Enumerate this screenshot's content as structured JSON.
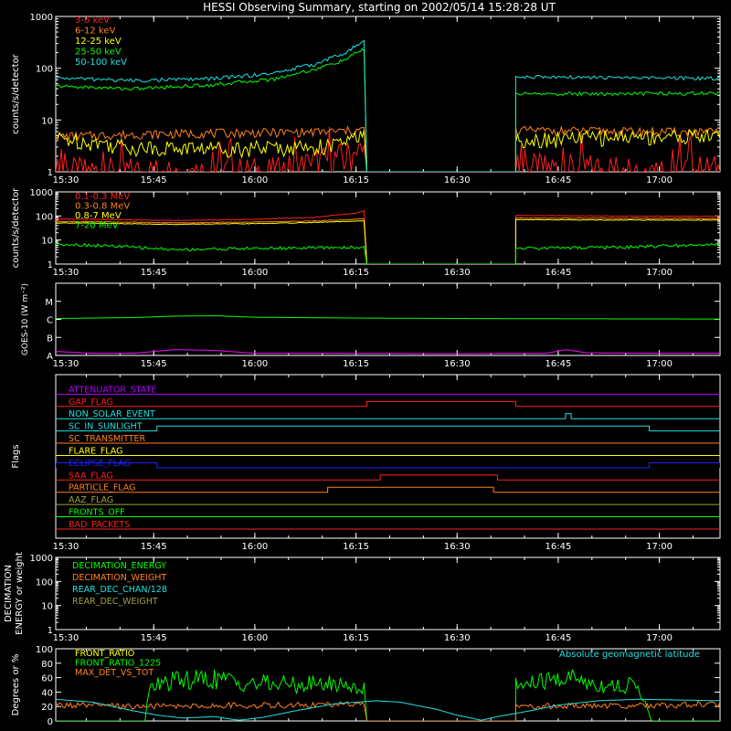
{
  "title": "HESSI Observing Summary, starting on 2002/05/14 15:28:28 UT",
  "colors": {
    "background": "#000000",
    "axes": "#ffffff",
    "red": "#ff2020",
    "orange": "#ff8020",
    "yellow": "#ffff00",
    "green": "#00ff00",
    "cyan": "#20e0e0",
    "magenta": "#ff00ff",
    "purple": "#b000ff",
    "blue": "#2020ff",
    "olive": "#a0a040"
  },
  "chart_data": [
    {
      "id": "p1",
      "type": "line",
      "ylabel": "counts/s/detector",
      "yscale": "log",
      "ylim": [
        1,
        1000
      ],
      "yticks": [
        1,
        10,
        100,
        1000
      ],
      "ytick_labels": [
        "1",
        "10",
        "100",
        "1000"
      ],
      "xlim": [
        15.5078,
        17.15
      ],
      "xticks": [
        15.5,
        15.75,
        16.0,
        16.25,
        16.5,
        16.75,
        17.0
      ],
      "xtick_labels": [
        "15:30",
        "15:45",
        "16:00",
        "16:15",
        "16:30",
        "16:45",
        "17:00"
      ],
      "gap": [
        16.277,
        16.645
      ],
      "series": [
        {
          "name": "3-6 keV",
          "color": "red",
          "before": [
            [
              15.5078,
              1
            ],
            [
              16.05,
              1
            ],
            [
              16.12,
              1.3
            ],
            [
              16.2,
              1.8
            ],
            [
              16.27,
              2.5
            ]
          ],
          "after": [
            [
              16.645,
              1.2
            ],
            [
              17.15,
              1.1
            ]
          ]
        },
        {
          "name": "6-12 keV",
          "color": "orange",
          "before": [
            [
              15.5078,
              4.8
            ],
            [
              15.7,
              5.3
            ],
            [
              15.9,
              5.6
            ],
            [
              16.1,
              5.8
            ],
            [
              16.2,
              6
            ],
            [
              16.27,
              6.5
            ]
          ],
          "after": [
            [
              16.645,
              6.3
            ],
            [
              16.9,
              6
            ],
            [
              17.15,
              5.8
            ]
          ]
        },
        {
          "name": "12-25 keV",
          "color": "yellow",
          "before": [
            [
              15.5078,
              4.5
            ],
            [
              15.7,
              3
            ],
            [
              15.9,
              2.9
            ],
            [
              16.1,
              3
            ],
            [
              16.2,
              3.3
            ],
            [
              16.27,
              5
            ]
          ],
          "after": [
            [
              16.645,
              4.2
            ],
            [
              16.9,
              4.8
            ],
            [
              17.15,
              5
            ]
          ]
        },
        {
          "name": "25-50 keV",
          "color": "green",
          "before": [
            [
              15.5078,
              45
            ],
            [
              15.7,
              40
            ],
            [
              15.9,
              48
            ],
            [
              16.05,
              62
            ],
            [
              16.15,
              95
            ],
            [
              16.22,
              140
            ],
            [
              16.27,
              230
            ]
          ],
          "after": [
            [
              16.645,
              32
            ],
            [
              16.9,
              32
            ],
            [
              17.15,
              33
            ]
          ]
        },
        {
          "name": "50-100 keV",
          "color": "cyan",
          "before": [
            [
              15.5078,
              65
            ],
            [
              15.7,
              58
            ],
            [
              15.9,
              63
            ],
            [
              16.05,
              80
            ],
            [
              16.15,
              120
            ],
            [
              16.22,
              190
            ],
            [
              16.27,
              320
            ]
          ],
          "after": [
            [
              16.645,
              68
            ],
            [
              16.9,
              65
            ],
            [
              17.15,
              64
            ]
          ]
        }
      ]
    },
    {
      "id": "p2",
      "type": "line",
      "ylabel": "counts/s/detector",
      "yscale": "log",
      "ylim": [
        1,
        1000
      ],
      "yticks": [
        1,
        10,
        100,
        1000
      ],
      "ytick_labels": [
        "1",
        "10",
        "100",
        "1000"
      ],
      "xlim": [
        15.5078,
        17.15
      ],
      "xticks": [
        15.5,
        15.75,
        16.0,
        16.25,
        16.5,
        16.75,
        17.0
      ],
      "xtick_labels": [
        "15:30",
        "15:45",
        "16:00",
        "16:15",
        "16:30",
        "16:45",
        "17:00"
      ],
      "gap": [
        16.277,
        16.645
      ],
      "series": [
        {
          "name": "0.1-0.3 MeV",
          "color": "red",
          "before": [
            [
              15.5078,
              75
            ],
            [
              15.8,
              65
            ],
            [
              16.0,
              72
            ],
            [
              16.15,
              88
            ],
            [
              16.25,
              130
            ],
            [
              16.27,
              160
            ]
          ],
          "after": [
            [
              16.645,
              105
            ],
            [
              16.9,
              98
            ],
            [
              17.15,
              96
            ]
          ]
        },
        {
          "name": "0.3-0.8 MeV",
          "color": "orange",
          "before": [
            [
              15.5078,
              60
            ],
            [
              15.8,
              52
            ],
            [
              16.0,
              56
            ],
            [
              16.15,
              62
            ],
            [
              16.27,
              75
            ]
          ],
          "after": [
            [
              16.645,
              82
            ],
            [
              16.9,
              80
            ],
            [
              17.15,
              78
            ]
          ]
        },
        {
          "name": "0.8-7 MeV",
          "color": "yellow",
          "before": [
            [
              15.5078,
              52
            ],
            [
              15.8,
              45
            ],
            [
              16.0,
              48
            ],
            [
              16.15,
              54
            ],
            [
              16.27,
              62
            ]
          ],
          "after": [
            [
              16.645,
              70
            ],
            [
              16.9,
              68
            ],
            [
              17.15,
              67
            ]
          ]
        },
        {
          "name": "7-20 MeV",
          "color": "green",
          "before": [
            [
              15.5078,
              7
            ],
            [
              15.8,
              4
            ],
            [
              16.0,
              4.5
            ],
            [
              16.15,
              4.8
            ],
            [
              16.27,
              5
            ]
          ],
          "after": [
            [
              16.645,
              4.5
            ],
            [
              16.9,
              5
            ],
            [
              17.05,
              6
            ],
            [
              17.15,
              6.5
            ]
          ]
        }
      ]
    },
    {
      "id": "p3",
      "type": "line",
      "ylabel": "GOES-10 (W m⁻²)",
      "yscale": "category",
      "ylim": [
        0,
        4
      ],
      "yticks": [
        0,
        1,
        2,
        3,
        4
      ],
      "ytick_labels": [
        "A",
        "B",
        "C",
        "M",
        ""
      ],
      "xlim": [
        15.5078,
        17.15
      ],
      "xticks": [
        15.5,
        15.75,
        16.0,
        16.25,
        16.5,
        16.75,
        17.0
      ],
      "xtick_labels": [
        "15:30",
        "15:45",
        "16:00",
        "16:15",
        "16:30",
        "16:45",
        "17:00"
      ],
      "series": [
        {
          "color": "green",
          "points": [
            [
              15.5078,
              2.05
            ],
            [
              15.7,
              2.1
            ],
            [
              15.8,
              2.18
            ],
            [
              15.9,
              2.2
            ],
            [
              16.0,
              2.12
            ],
            [
              16.2,
              2.08
            ],
            [
              16.5,
              2.05
            ],
            [
              16.8,
              2.03
            ],
            [
              17.15,
              2.02
            ]
          ]
        },
        {
          "color": "magenta",
          "points": [
            [
              15.5078,
              0.22
            ],
            [
              15.6,
              0.12
            ],
            [
              15.7,
              0.12
            ],
            [
              15.8,
              0.32
            ],
            [
              15.9,
              0.28
            ],
            [
              16.0,
              0.12
            ],
            [
              16.2,
              0.12
            ],
            [
              16.5,
              0.1
            ],
            [
              16.72,
              0.12
            ],
            [
              16.77,
              0.32
            ],
            [
              16.82,
              0.15
            ],
            [
              17.0,
              0.12
            ],
            [
              17.15,
              0.12
            ]
          ]
        }
      ]
    },
    {
      "id": "p4",
      "type": "line",
      "ylabel": "Flags",
      "xlim": [
        15.5078,
        17.15
      ],
      "xticks": [
        15.5,
        15.75,
        16.0,
        16.25,
        16.5,
        16.75,
        17.0
      ],
      "xtick_labels": [
        "15:30",
        "15:45",
        "16:00",
        "16:15",
        "16:30",
        "16:45",
        "17:00"
      ],
      "flags": [
        {
          "name": "ATTENUATOR_STATE",
          "color": "purple",
          "on": []
        },
        {
          "name": "GAP_FLAG",
          "color": "red",
          "on": [
            [
              16.277,
              16.645
            ]
          ]
        },
        {
          "name": "NON_SOLAR_EVENT",
          "color": "cyan",
          "on": [
            [
              16.768,
              16.782
            ]
          ]
        },
        {
          "name": "SC_IN_SUNLIGHT",
          "color": "cyan",
          "on": [
            [
              15.758,
              16.975
            ]
          ]
        },
        {
          "name": "SC_TRANSMITTER",
          "color": "orange",
          "on": []
        },
        {
          "name": "FLARE_FLAG",
          "color": "yellow",
          "on": []
        },
        {
          "name": "ECLIPSE_FLAG",
          "color": "blue",
          "on": [
            [
              15.5078,
              15.758
            ],
            [
              16.975,
              17.15
            ]
          ]
        },
        {
          "name": "SAA_FLAG",
          "color": "red",
          "on": [
            [
              16.31,
              16.6
            ]
          ]
        },
        {
          "name": "PARTICLE_FLAG",
          "color": "orange",
          "on": [
            [
              16.18,
              16.59
            ]
          ]
        },
        {
          "name": "AAZ_FLAG",
          "color": "olive",
          "on": []
        },
        {
          "name": "FRONTS_OFF",
          "color": "green",
          "on": []
        },
        {
          "name": "BAD_PACKETS",
          "color": "red",
          "on": []
        }
      ]
    },
    {
      "id": "p5",
      "type": "line",
      "ylabel": "DECIMATION ENERGY or weight",
      "yscale": "log",
      "ylim": [
        1,
        1000
      ],
      "yticks": [
        1,
        10,
        100,
        1000
      ],
      "ytick_labels": [
        "1",
        "10",
        "100",
        "1000"
      ],
      "xlim": [
        15.5078,
        17.15
      ],
      "xticks": [
        15.5,
        15.75,
        16.0,
        16.25,
        16.5,
        16.75,
        17.0
      ],
      "xtick_labels": [
        "15:30",
        "15:45",
        "16:00",
        "16:15",
        "16:30",
        "16:45",
        "17:00"
      ],
      "series": [
        {
          "name": "DECIMATION_ENERGY",
          "color": "green",
          "points": []
        },
        {
          "name": "DECIMATION_WEIGHT",
          "color": "orange",
          "points": []
        },
        {
          "name": "REAR_DEC_CHAN/128",
          "color": "cyan",
          "points": []
        },
        {
          "name": "REAR_DEC_WEIGHT",
          "color": "olive",
          "points": []
        }
      ]
    },
    {
      "id": "p6",
      "type": "line",
      "ylabel": "Degrees or %",
      "ylim": [
        0,
        100
      ],
      "yticks": [
        0,
        20,
        40,
        60,
        80,
        100
      ],
      "ytick_labels": [
        "0",
        "20",
        "40",
        "60",
        "80",
        "100"
      ],
      "xlim": [
        15.5078,
        17.15
      ],
      "annotation": "Absolute geomagnetic latitude",
      "gap": [
        16.277,
        16.645
      ],
      "series": [
        {
          "name": "FRONT_RATIO",
          "color": "yellow",
          "points": []
        },
        {
          "name": "FRONT_RATIO_1225",
          "color": "green",
          "before": [
            [
              15.5078,
              0
            ],
            [
              15.73,
              0
            ],
            [
              15.735,
              45
            ],
            [
              15.8,
              55
            ],
            [
              15.9,
              58
            ],
            [
              16.0,
              52
            ],
            [
              16.1,
              50
            ],
            [
              16.2,
              52
            ],
            [
              16.27,
              45
            ]
          ],
          "after": [
            [
              16.645,
              48
            ],
            [
              16.72,
              55
            ],
            [
              16.78,
              60
            ],
            [
              16.85,
              50
            ],
            [
              16.95,
              48
            ],
            [
              16.98,
              0
            ],
            [
              17.15,
              0
            ]
          ]
        },
        {
          "name": "MAX_DET_VS_TOT",
          "color": "orange",
          "before": [
            [
              15.5078,
              22
            ],
            [
              15.7,
              20
            ],
            [
              15.9,
              21
            ],
            [
              16.1,
              22
            ],
            [
              16.27,
              23
            ]
          ],
          "after": [
            [
              16.645,
              20
            ],
            [
              16.9,
              21
            ],
            [
              17.15,
              23
            ]
          ]
        },
        {
          "name": "Absolute geomagnetic latitude",
          "color": "cyan",
          "points": [
            [
              15.5078,
              30
            ],
            [
              15.6,
              26
            ],
            [
              15.7,
              14
            ],
            [
              15.76,
              8
            ],
            [
              15.82,
              4
            ],
            [
              15.9,
              6
            ],
            [
              15.96,
              1
            ],
            [
              16.02,
              5
            ],
            [
              16.1,
              14
            ],
            [
              16.2,
              24
            ],
            [
              16.3,
              28
            ],
            [
              16.36,
              26
            ],
            [
              16.45,
              16
            ],
            [
              16.5,
              8
            ],
            [
              16.56,
              1
            ],
            [
              16.6,
              6
            ],
            [
              16.68,
              14
            ],
            [
              16.75,
              22
            ],
            [
              16.85,
              28
            ],
            [
              16.95,
              30
            ],
            [
              17.05,
              29
            ],
            [
              17.15,
              28
            ]
          ]
        }
      ]
    }
  ]
}
